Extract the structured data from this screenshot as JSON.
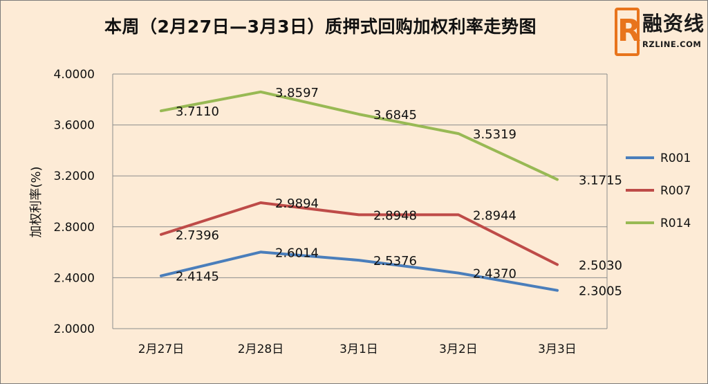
{
  "chart_data": {
    "type": "line",
    "title": "本周（2月27日—3月3日）质押式回购加权利率走势图",
    "ylabel": "加权利率(%)",
    "xlabel": "",
    "categories": [
      "2月27日",
      "2月28日",
      "3月1日",
      "3月2日",
      "3月3日"
    ],
    "ylim": [
      2.0,
      4.0
    ],
    "yticks": [
      "2.0000",
      "2.4000",
      "2.8000",
      "3.2000",
      "3.6000",
      "4.0000"
    ],
    "grid": true,
    "legend": "right",
    "series": [
      {
        "name": "R001",
        "color": "#4a7ebb",
        "values": [
          2.4145,
          2.6014,
          2.5376,
          2.437,
          2.3005
        ],
        "labels": [
          "2.4145",
          "2.6014",
          "2.5376",
          "2.4370",
          "2.3005"
        ]
      },
      {
        "name": "R007",
        "color": "#be4b48",
        "values": [
          2.7396,
          2.9894,
          2.8948,
          2.8944,
          2.503
        ],
        "labels": [
          "2.7396",
          "2.9894",
          "2.8948",
          "2.8944",
          "2.5030"
        ]
      },
      {
        "name": "R014",
        "color": "#98b954",
        "values": [
          3.711,
          3.8597,
          3.6845,
          3.5319,
          3.1715
        ],
        "labels": [
          "3.7110",
          "3.8597",
          "3.6845",
          "3.5319",
          "3.1715"
        ]
      }
    ]
  },
  "logo": {
    "cn": "融资线",
    "en": "RZLINE.COM",
    "mark": "R"
  }
}
